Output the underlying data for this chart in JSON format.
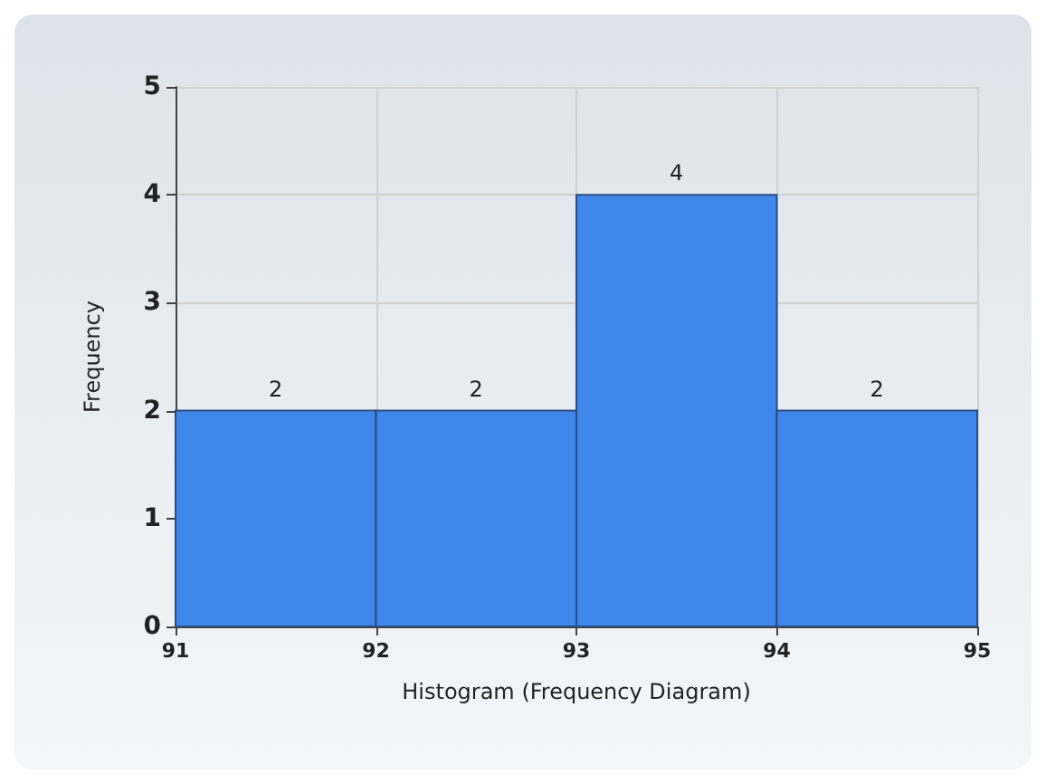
{
  "chart_data": {
    "type": "histogram",
    "xlabel": "Histogram (Frequency Diagram)",
    "ylabel": "Frequency",
    "bins": [
      91,
      92,
      93,
      94,
      95
    ],
    "values": [
      2,
      2,
      4,
      2
    ],
    "color": "#3f87eb",
    "xlim": [
      91,
      95
    ],
    "xticks": [
      91,
      92,
      93,
      94,
      95
    ],
    "ylim": [
      0,
      5
    ],
    "yticks": [
      0,
      1,
      2,
      3,
      4,
      5
    ],
    "grid": true,
    "data_labels": true
  }
}
